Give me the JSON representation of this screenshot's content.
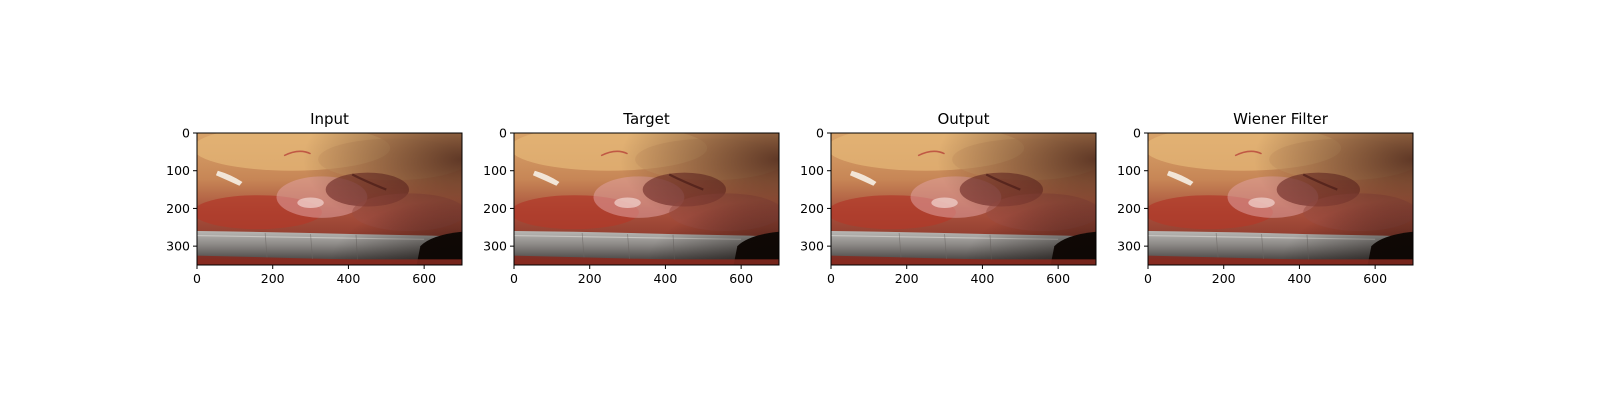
{
  "figure": {
    "panels": [
      {
        "title": "Input",
        "image_id": "surgical-frame"
      },
      {
        "title": "Target",
        "image_id": "surgical-frame"
      },
      {
        "title": "Output",
        "image_id": "surgical-frame"
      },
      {
        "title": "Wiener Filter",
        "image_id": "surgical-frame"
      }
    ],
    "x_ticks": [
      0,
      200,
      400,
      600
    ],
    "y_ticks": [
      0,
      100,
      200,
      300
    ],
    "x_range": [
      0,
      700
    ],
    "y_range": [
      0,
      350
    ]
  }
}
